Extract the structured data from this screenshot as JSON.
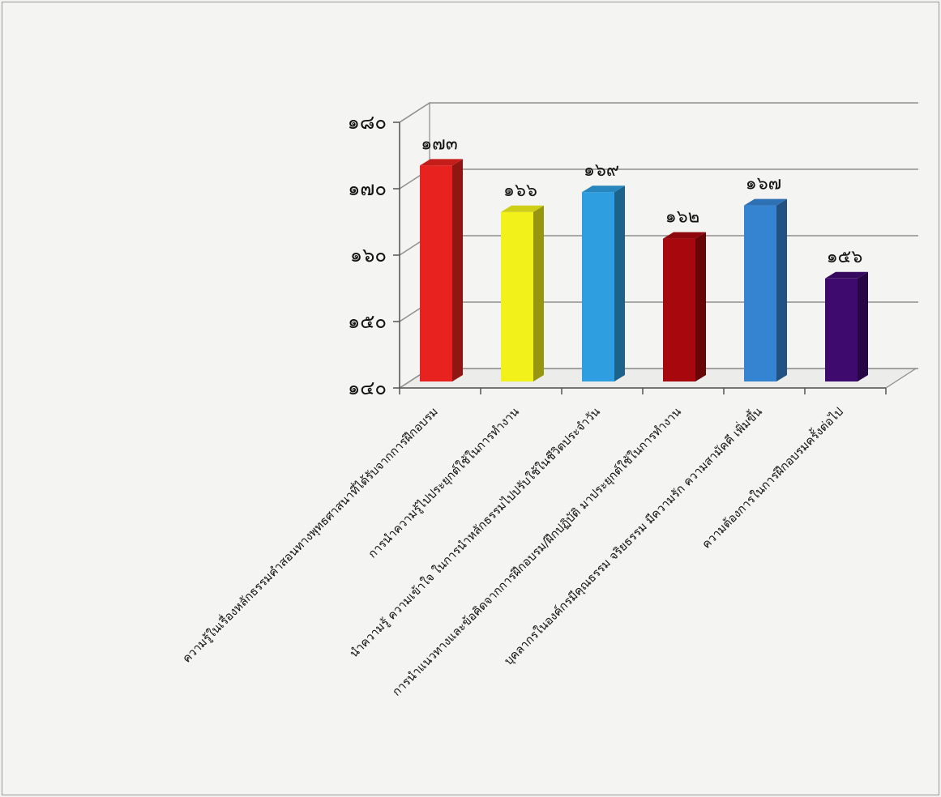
{
  "chart_data": {
    "type": "bar",
    "numerals": "thai",
    "categories": [
      "ความรู้ในเรื่องหลักธรรมคำสอนทางพุทธศาสนาที่ได้รับจากการฝึกอบรม",
      "การนำความรู้ไปประยุกต์ใช้ในการทำงาน",
      "นำความรู้ ความเข้าใจ ในการนำหลักธรรมไปปรับใช้ในชีวิตประจำวัน",
      "การนำแนวทางและข้อคิดจากการฝึกอบรม/ฝึกปฏิบัติ มาประยุกต์ใช้ในการทำงาน",
      "บุคลากรในองค์กรมีคุณธรรม จริยธรรม  มีความรัก ความสามัคคี เพิ่มขึ้น",
      "ความต้องการในการฝึกอบรมครั้งต่อไป"
    ],
    "values": [
      173,
      166,
      169,
      162,
      167,
      156
    ],
    "value_labels": [
      "๑๗๓",
      "๑๖๖",
      "๑๖๙",
      "๑๖๒",
      "๑๖๗",
      "๑๕๖"
    ],
    "colors": [
      "#e8231f",
      "#f2f21a",
      "#2f9ee0",
      "#a6080e",
      "#3584d2",
      "#3f0a6e"
    ],
    "ylim": [
      140,
      180
    ],
    "yticks": [
      140,
      150,
      160,
      170,
      180
    ],
    "ytick_labels": [
      "๑๔๐",
      "๑๕๐",
      "๑๖๐",
      "๑๗๐",
      "๑๘๐"
    ],
    "grid": true,
    "style": "3d-column",
    "title": "",
    "xlabel": "",
    "ylabel": ""
  }
}
